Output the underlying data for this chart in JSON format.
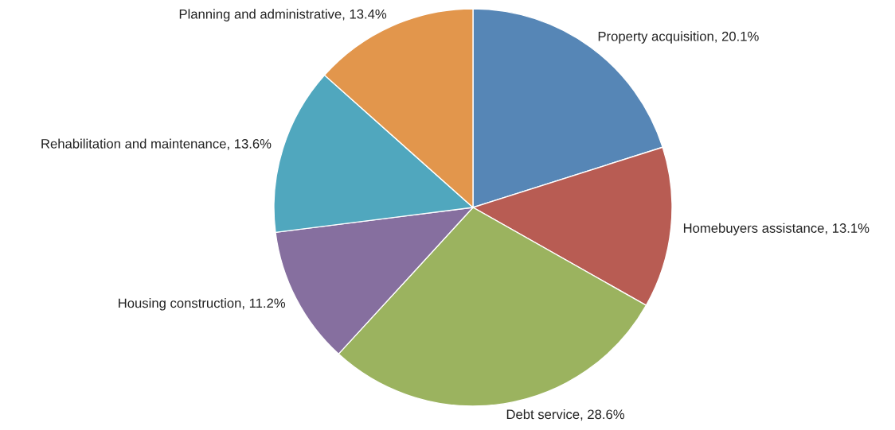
{
  "chart_data": {
    "type": "pie",
    "categories": [
      "Property acquisition",
      "Homebuyers assistance",
      "Debt service",
      "Housing construction",
      "Rehabilitation and maintenance",
      "Planning and administrative"
    ],
    "values": [
      20.1,
      13.1,
      28.6,
      11.2,
      13.6,
      13.4
    ],
    "value_labels": [
      "20.1%",
      "13.1%",
      "28.6%",
      "11.2%",
      "13.6%",
      "13.4%"
    ],
    "colors": [
      "#5686b6",
      "#b85c53",
      "#9bb35f",
      "#866f9f",
      "#50a7be",
      "#e2964c"
    ]
  }
}
